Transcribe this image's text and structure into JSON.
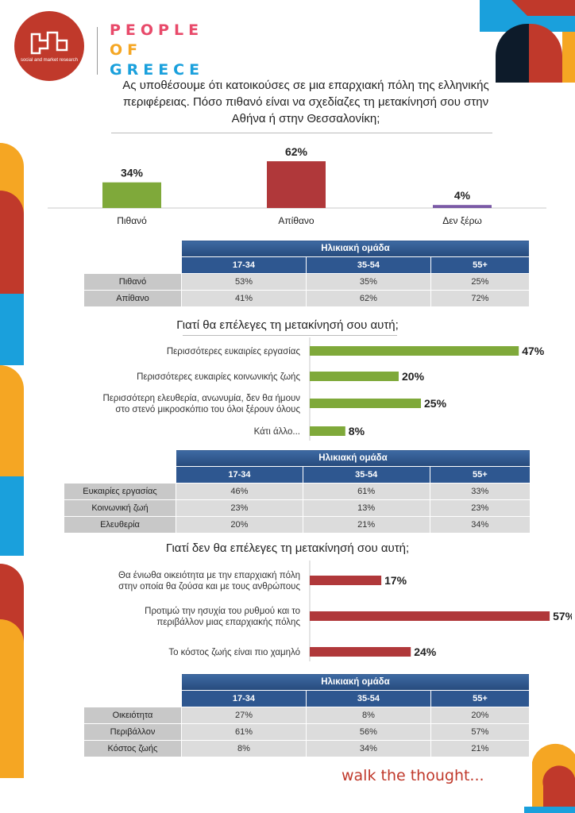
{
  "brand": {
    "logo_tag": "social and market research",
    "name_lines": [
      "PEOPLE",
      "OF",
      "GREECE"
    ]
  },
  "question": "Ας υποθέσουμε ότι κατοικούσες σε μια επαρχιακή πόλη της ελληνικής περιφέρειας. Πόσο πιθανό είναι να σχεδίαζες τη μετακίνησή σου στην Αθήνα ή στην Θεσσαλονίκη;",
  "colors": {
    "accent_red": "#c0392b",
    "bar_green": "#7fa93a",
    "bar_red": "#b0383a",
    "bar_purple": "#7b5aa6",
    "table_blue": "#2e5790"
  },
  "chart_data": [
    {
      "type": "bar",
      "categories": [
        "Πιθανό",
        "Απίθανο",
        "Δεν ξέρω"
      ],
      "values": [
        34,
        62,
        4
      ],
      "value_labels": [
        "34%",
        "62%",
        "4%"
      ],
      "ylim": [
        0,
        100
      ]
    },
    {
      "type": "bar",
      "orientation": "horizontal",
      "title": "Γιατί θα επέλεγες τη μετακίνησή σου αυτή;",
      "categories": [
        [
          "Περισσότερες ευκαιρίες εργασίας"
        ],
        [
          "Περισσότερες ευκαιρίες κοινωνικής ζωής"
        ],
        [
          "Περισσότερη ελευθερία, ανωνυμία, δεν θα ήμουν",
          "στο στενό μικροσκόπιο του όλοι ξέρουν όλους"
        ],
        [
          "Κάτι άλλο..."
        ]
      ],
      "values": [
        47,
        20,
        25,
        8
      ],
      "value_labels": [
        "47%",
        "20%",
        "25%",
        "8%"
      ]
    },
    {
      "type": "bar",
      "orientation": "horizontal",
      "title": "Γιατί δεν θα επέλεγες τη μετακίνησή σου αυτή;",
      "categories": [
        [
          "Θα ένιωθα οικειότητα με την επαρχιακή πόλη",
          "στην οποία θα ζούσα και με τους ανθρώπους"
        ],
        [
          "Προτιμώ την ησυχία του ρυθμού και το",
          "περιβάλλον μιας επαρχιακής πόλης"
        ],
        [
          "Το κόστος ζωής είναι πιο χαμηλό"
        ]
      ],
      "values": [
        17,
        57,
        24
      ],
      "value_labels": [
        "17%",
        "57%",
        "24%"
      ]
    }
  ],
  "tables": [
    {
      "header": "Ηλικιακή ομάδα",
      "columns": [
        "17-34",
        "35-54",
        "55+"
      ],
      "rows": [
        {
          "label": "Πιθανό",
          "values": [
            "53%",
            "35%",
            "25%"
          ]
        },
        {
          "label": "Απίθανο",
          "values": [
            "41%",
            "62%",
            "72%"
          ]
        }
      ]
    },
    {
      "header": "Ηλικιακή ομάδα",
      "columns": [
        "17-34",
        "35-54",
        "55+"
      ],
      "rows": [
        {
          "label": "Ευκαιρίες εργασίας",
          "values": [
            "46%",
            "61%",
            "33%"
          ]
        },
        {
          "label": "Κοινωνική ζωή",
          "values": [
            "23%",
            "13%",
            "23%"
          ]
        },
        {
          "label": "Ελευθερία",
          "values": [
            "20%",
            "21%",
            "34%"
          ]
        }
      ]
    },
    {
      "header": "Ηλικιακή ομάδα",
      "columns": [
        "17-34",
        "35-54",
        "55+"
      ],
      "rows": [
        {
          "label": "Οικειότητα",
          "values": [
            "27%",
            "8%",
            "20%"
          ]
        },
        {
          "label": "Περιβάλλον",
          "values": [
            "61%",
            "56%",
            "57%"
          ]
        },
        {
          "label": "Κόστος ζωής",
          "values": [
            "8%",
            "34%",
            "21%"
          ]
        }
      ]
    }
  ],
  "footer": "walk the thought..."
}
